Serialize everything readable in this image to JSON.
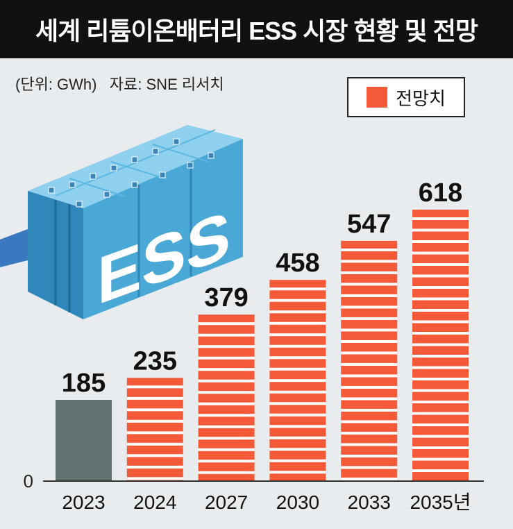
{
  "title": "세계 리튬이온배터리 ESS 시장 현황 및 전망",
  "source": "(단위: GWh)   자료: SNE 리서치",
  "legend": {
    "label": "전망치"
  },
  "illustration": {
    "text": "ESS"
  },
  "colors": {
    "actual": "#627070",
    "forecast": "#f55a38",
    "stripe": "#ffffff",
    "illustration": "#4aa8d6"
  },
  "chart_data": {
    "type": "bar",
    "categories": [
      "2023",
      "2024",
      "2027",
      "2030",
      "2033",
      "2035년"
    ],
    "values": [
      185,
      235,
      379,
      458,
      547,
      618
    ],
    "forecast": [
      false,
      true,
      true,
      true,
      true,
      true
    ],
    "ylim": [
      0,
      618
    ],
    "zero_label": "0",
    "unit": "GWh"
  }
}
